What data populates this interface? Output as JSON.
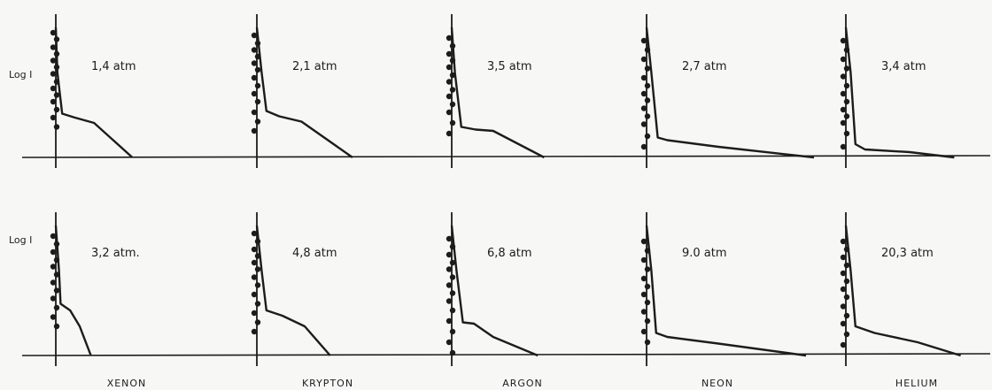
{
  "chart_data": {
    "type": "scatter",
    "title": "",
    "ylabel": "Log I",
    "xlabel": "",
    "note": "Ten small panels (2 rows x 5 columns); each shows a vertical column of dots on the axis followed by a curve dropping to the baseline. Axes are unlabeled numerically.",
    "xlim": [
      0,
      10
    ],
    "ylim": [
      0,
      10
    ],
    "grid": false,
    "rows": [
      {
        "ylabel": "Log I",
        "show_gas_labels": false
      },
      {
        "ylabel": "Log I",
        "show_gas_labels": true
      }
    ],
    "gases": [
      "XENON",
      "KRYPTON",
      "ARGON",
      "NEON",
      "HELIUM"
    ],
    "panels": [
      {
        "gas": "XENON",
        "pressure": "1,4 atm",
        "dots_y": [
          9.4,
          8.9,
          8.3,
          7.8,
          7.3,
          6.8,
          6.3,
          5.7,
          5.2,
          4.7,
          4.2,
          3.6,
          3.0,
          2.3
        ],
        "curve": [
          [
            0,
            9.8
          ],
          [
            0.1,
            6.4
          ],
          [
            0.4,
            3.3
          ],
          [
            1.2,
            3.0
          ],
          [
            2.4,
            2.6
          ],
          [
            4.8,
            0
          ]
        ]
      },
      {
        "gas": "KRYPTON",
        "pressure": "2,1 atm",
        "dots_y": [
          9.2,
          8.6,
          8.1,
          7.6,
          7.1,
          6.6,
          6.0,
          5.4,
          4.8,
          4.2,
          3.4,
          2.7,
          2.0
        ],
        "curve": [
          [
            0,
            9.8
          ],
          [
            0.3,
            6.4
          ],
          [
            0.6,
            3.5
          ],
          [
            1.4,
            3.1
          ],
          [
            2.8,
            2.7
          ],
          [
            6.0,
            0
          ]
        ]
      },
      {
        "gas": "ARGON",
        "pressure": "3,5 atm",
        "dots_y": [
          9.0,
          8.4,
          7.8,
          7.3,
          6.8,
          6.2,
          5.7,
          5.1,
          4.6,
          4.0,
          3.4,
          2.6,
          1.8
        ],
        "curve": [
          [
            0,
            9.8
          ],
          [
            0.2,
            6.4
          ],
          [
            0.6,
            2.3
          ],
          [
            1.5,
            2.1
          ],
          [
            2.6,
            2.0
          ],
          [
            5.8,
            0
          ]
        ]
      },
      {
        "gas": "NEON",
        "pressure": "2,7 atm",
        "dots_y": [
          8.8,
          8.1,
          7.4,
          6.7,
          6.0,
          5.4,
          4.8,
          4.3,
          3.7,
          3.1,
          2.5,
          1.6,
          0.8
        ],
        "curve": [
          [
            0,
            9.8
          ],
          [
            0.3,
            6.4
          ],
          [
            0.7,
            1.5
          ],
          [
            1.3,
            1.3
          ],
          [
            4.5,
            0.8
          ],
          [
            10.5,
            0
          ]
        ]
      },
      {
        "gas": "HELIUM",
        "pressure": "3,4 atm",
        "dots_y": [
          8.8,
          8.1,
          7.4,
          6.7,
          6.1,
          5.4,
          4.8,
          4.2,
          3.6,
          3.1,
          2.6,
          1.8,
          0.8
        ],
        "curve": [
          [
            0,
            9.8
          ],
          [
            0.3,
            6.4
          ],
          [
            0.6,
            1.0
          ],
          [
            1.2,
            0.6
          ],
          [
            4.0,
            0.4
          ],
          [
            6.8,
            0
          ]
        ]
      },
      {
        "gas": "XENON",
        "pressure": "3,2 atm.",
        "dots_y": [
          9.0,
          8.4,
          7.8,
          7.2,
          6.7,
          6.1,
          5.5,
          4.9,
          4.3,
          3.6,
          2.9,
          2.2
        ],
        "curve": [
          [
            0,
            9.8
          ],
          [
            0.2,
            6.4
          ],
          [
            0.3,
            3.9
          ],
          [
            0.9,
            3.4
          ],
          [
            1.5,
            2.2
          ],
          [
            2.2,
            0
          ]
        ]
      },
      {
        "gas": "KRYPTON",
        "pressure": "4,8 atm",
        "dots_y": [
          9.2,
          8.6,
          8.0,
          7.5,
          7.0,
          6.5,
          5.9,
          5.3,
          4.6,
          3.9,
          3.2,
          2.5,
          1.8
        ],
        "curve": [
          [
            0,
            9.8
          ],
          [
            0.3,
            6.4
          ],
          [
            0.6,
            3.4
          ],
          [
            1.6,
            3.0
          ],
          [
            3.0,
            2.2
          ],
          [
            4.6,
            0
          ]
        ]
      },
      {
        "gas": "ARGON",
        "pressure": "6,8 atm",
        "dots_y": [
          8.8,
          8.2,
          7.6,
          7.0,
          6.5,
          5.9,
          5.3,
          4.7,
          4.1,
          3.4,
          2.6,
          1.8,
          1.0,
          0.2
        ],
        "curve": [
          [
            0,
            9.8
          ],
          [
            0.3,
            6.4
          ],
          [
            0.7,
            2.5
          ],
          [
            1.4,
            2.4
          ],
          [
            2.6,
            1.4
          ],
          [
            5.4,
            0
          ]
        ]
      },
      {
        "gas": "NEON",
        "pressure": "9.0 atm",
        "dots_y": [
          8.6,
          7.9,
          7.2,
          6.5,
          5.8,
          5.2,
          4.6,
          4.0,
          3.3,
          2.6,
          1.8,
          1.0
        ],
        "curve": [
          [
            0,
            9.8
          ],
          [
            0.3,
            6.4
          ],
          [
            0.6,
            1.7
          ],
          [
            1.3,
            1.4
          ],
          [
            4.5,
            0.9
          ],
          [
            10.0,
            0
          ]
        ]
      },
      {
        "gas": "HELIUM",
        "pressure": "20,3 atm",
        "dots_y": [
          8.6,
          8.0,
          7.4,
          6.8,
          6.2,
          5.6,
          5.0,
          4.4,
          3.7,
          3.0,
          2.4,
          1.6,
          0.8
        ],
        "curve": [
          [
            0,
            9.8
          ],
          [
            0.3,
            6.4
          ],
          [
            0.6,
            2.2
          ],
          [
            1.8,
            1.7
          ],
          [
            4.5,
            1.0
          ],
          [
            7.2,
            0
          ]
        ]
      }
    ]
  },
  "colors": {
    "ink": "#1c1c1c",
    "paper": "#f7f7f5"
  }
}
